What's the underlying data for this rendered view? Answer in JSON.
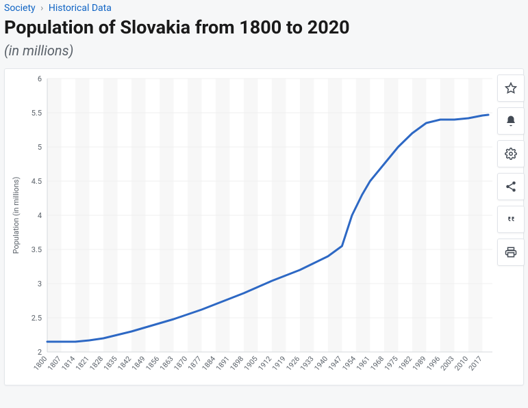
{
  "breadcrumb": {
    "cat": "Society",
    "sub": "Historical Data"
  },
  "title": "Population of Slovakia from 1800 to 2020",
  "subtitle": "(in millions)",
  "chart": {
    "type": "line",
    "ylabel": "Population (in millions)",
    "ylim": [
      2,
      6
    ],
    "ytick_step": 0.5,
    "x_ticks": [
      1800,
      1807,
      1814,
      1821,
      1828,
      1835,
      1842,
      1849,
      1856,
      1863,
      1870,
      1877,
      1884,
      1891,
      1898,
      1905,
      1912,
      1919,
      1926,
      1933,
      1940,
      1947,
      1954,
      1961,
      1968,
      1975,
      1982,
      1989,
      1996,
      2003,
      2010,
      2017
    ],
    "x_range": [
      1800,
      2022
    ],
    "line_color": "#2d68c4",
    "line_width": 3,
    "grid_color": "#efefef",
    "grid_alt_color": "#f7f7f7",
    "axis_color": "#d5d9dd",
    "background_color": "#ffffff",
    "label_fontsize": 11,
    "series": [
      {
        "x": 1800,
        "y": 2.15
      },
      {
        "x": 1807,
        "y": 2.15
      },
      {
        "x": 1814,
        "y": 2.15
      },
      {
        "x": 1821,
        "y": 2.17
      },
      {
        "x": 1828,
        "y": 2.2
      },
      {
        "x": 1835,
        "y": 2.25
      },
      {
        "x": 1842,
        "y": 2.3
      },
      {
        "x": 1849,
        "y": 2.36
      },
      {
        "x": 1856,
        "y": 2.42
      },
      {
        "x": 1863,
        "y": 2.48
      },
      {
        "x": 1870,
        "y": 2.55
      },
      {
        "x": 1877,
        "y": 2.62
      },
      {
        "x": 1884,
        "y": 2.7
      },
      {
        "x": 1891,
        "y": 2.78
      },
      {
        "x": 1898,
        "y": 2.86
      },
      {
        "x": 1905,
        "y": 2.95
      },
      {
        "x": 1912,
        "y": 3.04
      },
      {
        "x": 1919,
        "y": 3.12
      },
      {
        "x": 1926,
        "y": 3.2
      },
      {
        "x": 1933,
        "y": 3.3
      },
      {
        "x": 1940,
        "y": 3.4
      },
      {
        "x": 1947,
        "y": 3.55
      },
      {
        "x": 1952,
        "y": 4.0
      },
      {
        "x": 1957,
        "y": 4.3
      },
      {
        "x": 1961,
        "y": 4.5
      },
      {
        "x": 1968,
        "y": 4.75
      },
      {
        "x": 1975,
        "y": 5.0
      },
      {
        "x": 1982,
        "y": 5.2
      },
      {
        "x": 1989,
        "y": 5.35
      },
      {
        "x": 1996,
        "y": 5.4
      },
      {
        "x": 2003,
        "y": 5.4
      },
      {
        "x": 2010,
        "y": 5.42
      },
      {
        "x": 2017,
        "y": 5.46
      },
      {
        "x": 2020,
        "y": 5.47
      }
    ]
  },
  "actions": {
    "favorite": "Favorite",
    "alert": "Alert",
    "settings": "Settings",
    "share": "Share",
    "cite": "Cite",
    "print": "Print"
  }
}
